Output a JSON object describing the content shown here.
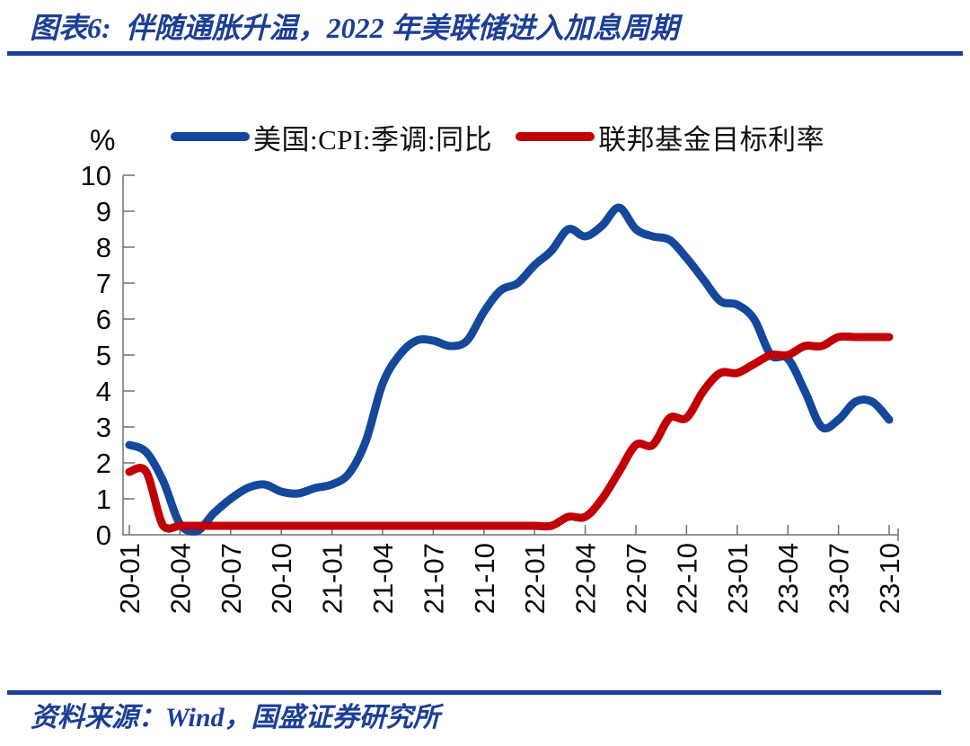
{
  "header": {
    "title_prefix": "图表6:",
    "title_text": "伴随通胀升温，2022 年美联储进入加息周期"
  },
  "footer": {
    "source_text": "资料来源：Wind，国盛证券研究所"
  },
  "colors": {
    "navy_accent": "#1B3F96",
    "cpi_blue": "#15489B",
    "rate_red": "#C00006",
    "axis_gray": "#707070",
    "tick_text": "#0A0A0A"
  },
  "chart_data": {
    "type": "line",
    "title": "图表6: 伴随通胀升温，2022 年美联储进入加息周期",
    "unit_label": "%",
    "xlabel": "",
    "ylabel": "%",
    "ylim": [
      0,
      10
    ],
    "y_ticks": [
      0,
      1,
      2,
      3,
      4,
      5,
      6,
      7,
      8,
      9,
      10
    ],
    "grid": false,
    "legend_position": "top",
    "x_start": "2020-01",
    "x_freq": "monthly",
    "x_tick_labels": [
      "20-01",
      "20-04",
      "20-07",
      "20-10",
      "21-01",
      "21-04",
      "21-07",
      "21-10",
      "22-01",
      "22-04",
      "22-07",
      "22-10",
      "23-01",
      "23-04",
      "23-07",
      "23-10"
    ],
    "x_tick_every": 3,
    "series": [
      {
        "name": "美国:CPI:季调:同比",
        "color": "#15489B",
        "values": [
          2.5,
          2.3,
          1.5,
          0.3,
          0.1,
          0.6,
          1.0,
          1.3,
          1.4,
          1.2,
          1.15,
          1.3,
          1.4,
          1.7,
          2.6,
          4.2,
          5.0,
          5.4,
          5.4,
          5.25,
          5.4,
          6.2,
          6.8,
          7.0,
          7.5,
          7.9,
          8.5,
          8.3,
          8.6,
          9.1,
          8.5,
          8.3,
          8.2,
          7.7,
          7.1,
          6.5,
          6.4,
          6.0,
          5.0,
          4.9,
          4.0,
          3.0,
          3.2,
          3.7,
          3.7,
          3.2
        ]
      },
      {
        "name": "联邦基金目标利率",
        "color": "#C00006",
        "values": [
          1.75,
          1.75,
          0.25,
          0.25,
          0.25,
          0.25,
          0.25,
          0.25,
          0.25,
          0.25,
          0.25,
          0.25,
          0.25,
          0.25,
          0.25,
          0.25,
          0.25,
          0.25,
          0.25,
          0.25,
          0.25,
          0.25,
          0.25,
          0.25,
          0.25,
          0.25,
          0.5,
          0.5,
          1.0,
          1.75,
          2.5,
          2.5,
          3.25,
          3.25,
          4.0,
          4.5,
          4.5,
          4.75,
          5.0,
          5.0,
          5.25,
          5.25,
          5.5,
          5.5,
          5.5,
          5.5
        ]
      }
    ]
  }
}
